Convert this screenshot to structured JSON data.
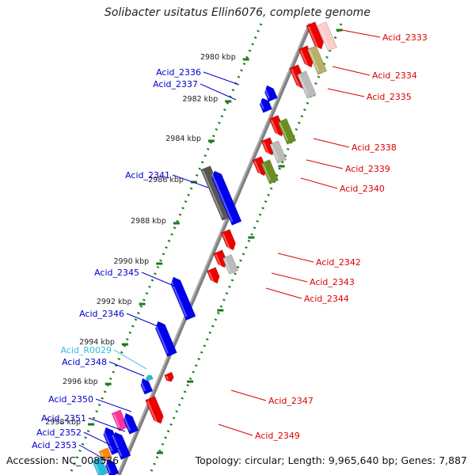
{
  "title": "Solibacter usitatus Ellin6076, complete genome",
  "footer": {
    "accession": "Accession: NC_008536",
    "topology": "Topology: circular; Length: 9,965,640 bp; Genes: 7,887"
  },
  "colors": {
    "backbone": "#808080",
    "ruler": "#1a7a1a",
    "forward_label": "#0000cc",
    "reverse_label": "#dd0000",
    "rna_label": "#33bbdd"
  },
  "ruler_ticks": [
    "2980 kbp",
    "2982 kbp",
    "2984 kbp",
    "2986 kbp",
    "2988 kbp",
    "2990 kbp",
    "2992 kbp",
    "2994 kbp",
    "2996 kbp",
    "2998 kbp"
  ],
  "forward_genes": [
    "Acid_2336",
    "Acid_2337",
    "Acid_2341",
    "Acid_2345",
    "Acid_2346",
    "Acid_R0029",
    "Acid_2348",
    "Acid_2350",
    "Acid_2351",
    "Acid_2352",
    "Acid_2353"
  ],
  "reverse_genes": [
    "Acid_2333",
    "Acid_2334",
    "Acid_2335",
    "Acid_2338",
    "Acid_2339",
    "Acid_2340",
    "Acid_2342",
    "Acid_2343",
    "Acid_2344",
    "Acid_2347",
    "Acid_2349"
  ]
}
